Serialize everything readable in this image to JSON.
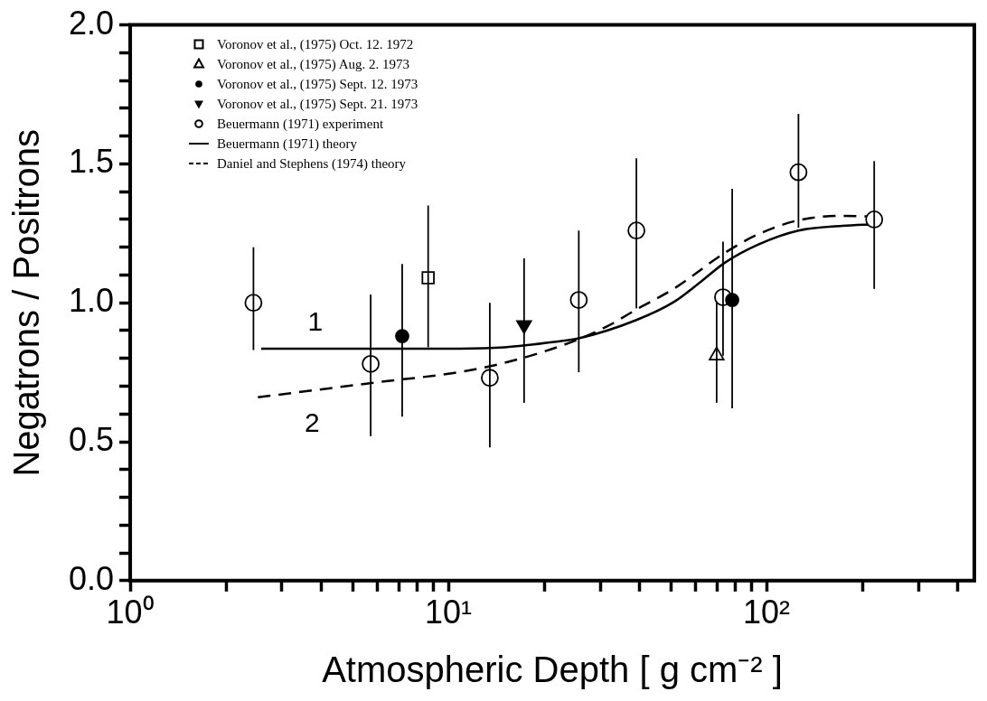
{
  "chart_data": {
    "type": "scatter",
    "xlabel": "Atmospheric Depth [ g cm⁻² ]",
    "ylabel": "Negatrons / Positrons",
    "log": "x",
    "legend": "top left",
    "grid": false,
    "xlim": [
      1,
      450
    ],
    "ylim": [
      0,
      2
    ],
    "xticks": [
      {
        "value": 1,
        "label": "10⁰"
      },
      {
        "value": 2,
        "label": null
      },
      {
        "value": 3,
        "label": null
      },
      {
        "value": 4,
        "label": null
      },
      {
        "value": 5,
        "label": null
      },
      {
        "value": 6,
        "label": null
      },
      {
        "value": 7,
        "label": null
      },
      {
        "value": 8,
        "label": null
      },
      {
        "value": 9,
        "label": null
      },
      {
        "value": 10,
        "label": "10¹"
      },
      {
        "value": 20,
        "label": null
      },
      {
        "value": 30,
        "label": null
      },
      {
        "value": 40,
        "label": null
      },
      {
        "value": 50,
        "label": null
      },
      {
        "value": 60,
        "label": null
      },
      {
        "value": 70,
        "label": null
      },
      {
        "value": 80,
        "label": null
      },
      {
        "value": 90,
        "label": null
      },
      {
        "value": 100,
        "label": "10²"
      },
      {
        "value": 200,
        "label": null
      },
      {
        "value": 300,
        "label": null
      },
      {
        "value": 400,
        "label": null
      }
    ],
    "yticks": [
      {
        "value": 0,
        "label": "0.0"
      },
      {
        "value": 0.1,
        "label": null
      },
      {
        "value": 0.2,
        "label": null
      },
      {
        "value": 0.3,
        "label": null
      },
      {
        "value": 0.4,
        "label": null
      },
      {
        "value": 0.5,
        "label": "0.5"
      },
      {
        "value": 0.6,
        "label": null
      },
      {
        "value": 0.7,
        "label": null
      },
      {
        "value": 0.8,
        "label": null
      },
      {
        "value": 0.9,
        "label": null
      },
      {
        "value": 1,
        "label": "1.0"
      },
      {
        "value": 1.1,
        "label": null
      },
      {
        "value": 1.2,
        "label": null
      },
      {
        "value": 1.3,
        "label": null
      },
      {
        "value": 1.4,
        "label": null
      },
      {
        "value": 1.5,
        "label": "1.5"
      },
      {
        "value": 1.6,
        "label": null
      },
      {
        "value": 1.7,
        "label": null
      },
      {
        "value": 1.8,
        "label": null
      },
      {
        "value": 1.9,
        "label": null
      },
      {
        "value": 2,
        "label": "2.0"
      }
    ],
    "series": [
      {
        "name": "Voronov et al., (1975) Oct. 12. 1972",
        "type": "scatter",
        "marker": "square",
        "color": "#000000",
        "x": [
          8.64
        ],
        "values": [
          1.09
        ],
        "errors": [
          [
            0.84,
            1.35
          ]
        ]
      },
      {
        "name": "Voronov et al., (1975) Aug. 2. 1973",
        "type": "scatter",
        "marker": "triangle",
        "color": "#000000",
        "x": [
          69.7
        ],
        "values": [
          0.81
        ],
        "errors": [
          [
            0.64,
            1.0
          ]
        ]
      },
      {
        "name": "Voronov et al., (1975) Sept. 12. 1973",
        "type": "scatter",
        "marker": "circle",
        "color": "#000000",
        "x": [
          7.16,
          78
        ],
        "values": [
          0.88,
          1.01
        ],
        "errors": [
          [
            0.59,
            1.14
          ],
          [
            0.62,
            1.41
          ]
        ]
      },
      {
        "name": "Voronov et al., (1975) Sept. 21. 1973",
        "type": "scatter",
        "marker": "triangle",
        "color": "#000000",
        "x": [
          17.3
        ],
        "values": [
          0.92
        ],
        "errors": [
          [
            0.64,
            1.16
          ]
        ]
      },
      {
        "name": "Beuermann (1971) experiment",
        "type": "scatter",
        "marker": "circle",
        "color": "#000000",
        "x": [
          2.44,
          5.7,
          13.5,
          25.7,
          39,
          73,
          126,
          218
        ],
        "values": [
          1.0,
          0.78,
          0.73,
          1.01,
          1.26,
          1.02,
          1.47,
          1.3
        ],
        "errors": [
          [
            0.83,
            1.2
          ],
          [
            0.52,
            1.03
          ],
          [
            0.48,
            1.0
          ],
          [
            0.75,
            1.26
          ],
          [
            0.98,
            1.52
          ],
          [
            0.81,
            1.22
          ],
          [
            1.27,
            1.68
          ],
          [
            1.05,
            1.51
          ]
        ]
      },
      {
        "name": "Beuermann (1971) theory",
        "type": "line",
        "marker": "none",
        "line_style": "solid",
        "color": "#000000",
        "x": [
          2.58,
          10,
          15,
          21.8,
          25.7,
          39,
          51.5,
          62.5,
          74.1,
          94.3,
          126,
          173,
          218
        ],
        "values": [
          0.835,
          0.835,
          0.84,
          0.86,
          0.872,
          0.938,
          1.005,
          1.078,
          1.145,
          1.21,
          1.26,
          1.277,
          1.283
        ]
      },
      {
        "name": "Daniel and Stephens (1974) theory",
        "type": "line",
        "marker": "none",
        "line_style": "dashed",
        "color": "#000000",
        "x": [
          2.52,
          5.6,
          12.7,
          22.6,
          31.4,
          39,
          51.5,
          74,
          94.3,
          126,
          173,
          215
        ],
        "values": [
          0.66,
          0.71,
          0.765,
          0.845,
          0.914,
          0.976,
          1.053,
          1.18,
          1.247,
          1.297,
          1.313,
          1.31
        ]
      }
    ],
    "annotations": [
      "1",
      "2"
    ]
  }
}
